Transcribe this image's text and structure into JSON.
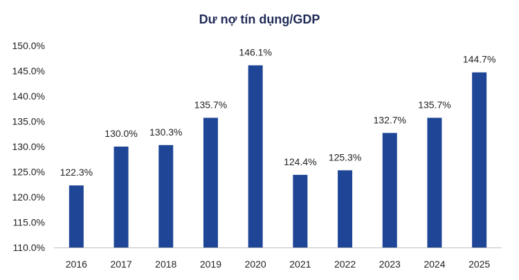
{
  "chart_data": {
    "type": "bar",
    "title": "Dư nợ tín dụng/GDP",
    "xlabel": "",
    "ylabel": "",
    "categories": [
      "2016",
      "2017",
      "2018",
      "2019",
      "2020",
      "2021",
      "2022",
      "2023",
      "2024",
      "2025"
    ],
    "values": [
      122.3,
      130.0,
      130.3,
      135.7,
      146.1,
      124.4,
      125.3,
      132.7,
      135.7,
      144.7
    ],
    "data_labels": [
      "122.3%",
      "130.0%",
      "130.3%",
      "135.7%",
      "146.1%",
      "124.4%",
      "125.3%",
      "132.7%",
      "135.7%",
      "144.7%"
    ],
    "ylim": [
      110,
      150
    ],
    "yticks": [
      110,
      115,
      120,
      125,
      130,
      135,
      140,
      145,
      150
    ],
    "ytick_labels": [
      "110.0%",
      "115.0%",
      "120.0%",
      "125.0%",
      "130.0%",
      "135.0%",
      "140.0%",
      "145.0%",
      "150.0%"
    ],
    "grid": false,
    "legend": "none",
    "bar_color": "#1f4696",
    "axis_color": "#bfbfbf"
  }
}
